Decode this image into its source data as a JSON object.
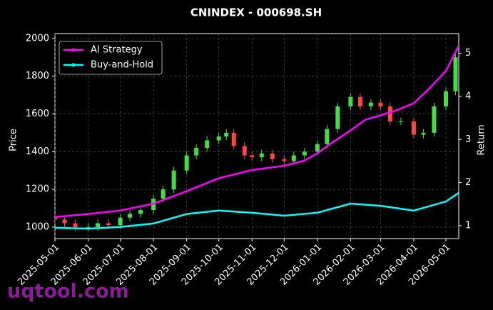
{
  "chart_data": {
    "type": "candlestick",
    "title": "CNINDEX - 000698.SH",
    "ylabel": "Price",
    "y2label": "Return",
    "watermark": "uqtool.com",
    "grid": true,
    "legend": "upper left",
    "up_color": "#44dd44",
    "down_color": "#ff4444",
    "xlim": [
      "2025-05-01",
      "2026-05-13"
    ],
    "xticks": [
      "2025-05-01",
      "2025-06-01",
      "2025-07-01",
      "2025-08-01",
      "2025-09-01",
      "2025-10-01",
      "2025-11-01",
      "2025-12-01",
      "2026-01-01",
      "2026-02-01",
      "2026-03-01",
      "2026-04-01",
      "2026-05-01"
    ],
    "ylim": [
      939,
      2026
    ],
    "yticks": [
      1000,
      1200,
      1400,
      1600,
      1800,
      2000
    ],
    "y2lim": [
      0.7,
      5.46
    ],
    "y2ticks": [
      1,
      2,
      3,
      4,
      5
    ],
    "x": [
      "2025-05-01",
      "2025-05-10",
      "2025-05-20",
      "2025-06-01",
      "2025-06-10",
      "2025-06-20",
      "2025-07-01",
      "2025-07-10",
      "2025-07-20",
      "2025-08-01",
      "2025-08-10",
      "2025-08-20",
      "2025-09-01",
      "2025-09-10",
      "2025-09-20",
      "2025-10-01",
      "2025-10-08",
      "2025-10-15",
      "2025-10-25",
      "2025-11-01",
      "2025-11-10",
      "2025-11-20",
      "2025-12-01",
      "2025-12-10",
      "2025-12-20",
      "2026-01-01",
      "2026-01-10",
      "2026-01-20",
      "2026-02-01",
      "2026-02-10",
      "2026-02-20",
      "2026-03-01",
      "2026-03-10",
      "2026-03-20",
      "2026-04-01",
      "2026-04-10",
      "2026-04-20",
      "2026-05-01",
      "2026-05-10"
    ],
    "open": [
      1050,
      1040,
      1020,
      1000,
      1000,
      1020,
      1010,
      1050,
      1070,
      1090,
      1150,
      1200,
      1300,
      1380,
      1420,
      1460,
      1480,
      1500,
      1430,
      1380,
      1370,
      1390,
      1360,
      1350,
      1380,
      1400,
      1440,
      1520,
      1640,
      1690,
      1640,
      1660,
      1640,
      1560,
      1560,
      1490,
      1500,
      1640,
      1720
    ],
    "high": [
      1070,
      1060,
      1040,
      1020,
      1040,
      1040,
      1070,
      1090,
      1110,
      1170,
      1220,
      1320,
      1400,
      1440,
      1480,
      1500,
      1520,
      1520,
      1450,
      1400,
      1410,
      1410,
      1380,
      1400,
      1420,
      1460,
      1540,
      1660,
      1710,
      1710,
      1680,
      1680,
      1660,
      1580,
      1580,
      1520,
      1660,
      1740,
      1920
    ],
    "low": [
      1020,
      1000,
      980,
      980,
      980,
      990,
      990,
      1030,
      1050,
      1070,
      1130,
      1180,
      1280,
      1360,
      1400,
      1440,
      1460,
      1410,
      1360,
      1350,
      1350,
      1340,
      1330,
      1330,
      1360,
      1380,
      1420,
      1500,
      1620,
      1620,
      1620,
      1620,
      1540,
      1540,
      1470,
      1470,
      1480,
      1620,
      1700
    ],
    "close": [
      1040,
      1020,
      1000,
      1000,
      1020,
      1010,
      1050,
      1070,
      1090,
      1150,
      1200,
      1300,
      1380,
      1420,
      1460,
      1480,
      1500,
      1430,
      1380,
      1370,
      1390,
      1360,
      1350,
      1380,
      1400,
      1440,
      1520,
      1640,
      1690,
      1640,
      1660,
      1640,
      1560,
      1560,
      1490,
      1500,
      1640,
      1720,
      1900
    ],
    "series": [
      {
        "name": "AI Strategy",
        "color": "#ff00ff",
        "axis": "y2",
        "x": [
          "2025-05-01",
          "2025-06-01",
          "2025-07-01",
          "2025-08-01",
          "2025-09-01",
          "2025-10-01",
          "2025-11-01",
          "2025-12-01",
          "2025-12-20",
          "2026-01-01",
          "2026-01-15",
          "2026-02-01",
          "2026-02-15",
          "2026-03-01",
          "2026-03-15",
          "2026-04-01",
          "2026-04-15",
          "2026-05-01",
          "2026-05-13"
        ],
        "values": [
          1.2,
          1.27,
          1.35,
          1.51,
          1.8,
          2.1,
          2.29,
          2.39,
          2.51,
          2.68,
          2.93,
          3.21,
          3.46,
          3.56,
          3.67,
          3.84,
          4.17,
          4.59,
          5.17
        ]
      },
      {
        "name": "Buy-and-Hold",
        "color": "#00ffff",
        "axis": "y2",
        "x": [
          "2025-05-01",
          "2025-06-01",
          "2025-07-01",
          "2025-08-01",
          "2025-09-01",
          "2025-10-01",
          "2025-11-01",
          "2025-12-01",
          "2026-01-01",
          "2026-02-01",
          "2026-03-01",
          "2026-04-01",
          "2026-05-01",
          "2026-05-13"
        ],
        "values": [
          0.95,
          0.93,
          0.97,
          1.05,
          1.27,
          1.35,
          1.3,
          1.23,
          1.3,
          1.51,
          1.46,
          1.35,
          1.56,
          1.76
        ]
      }
    ]
  }
}
